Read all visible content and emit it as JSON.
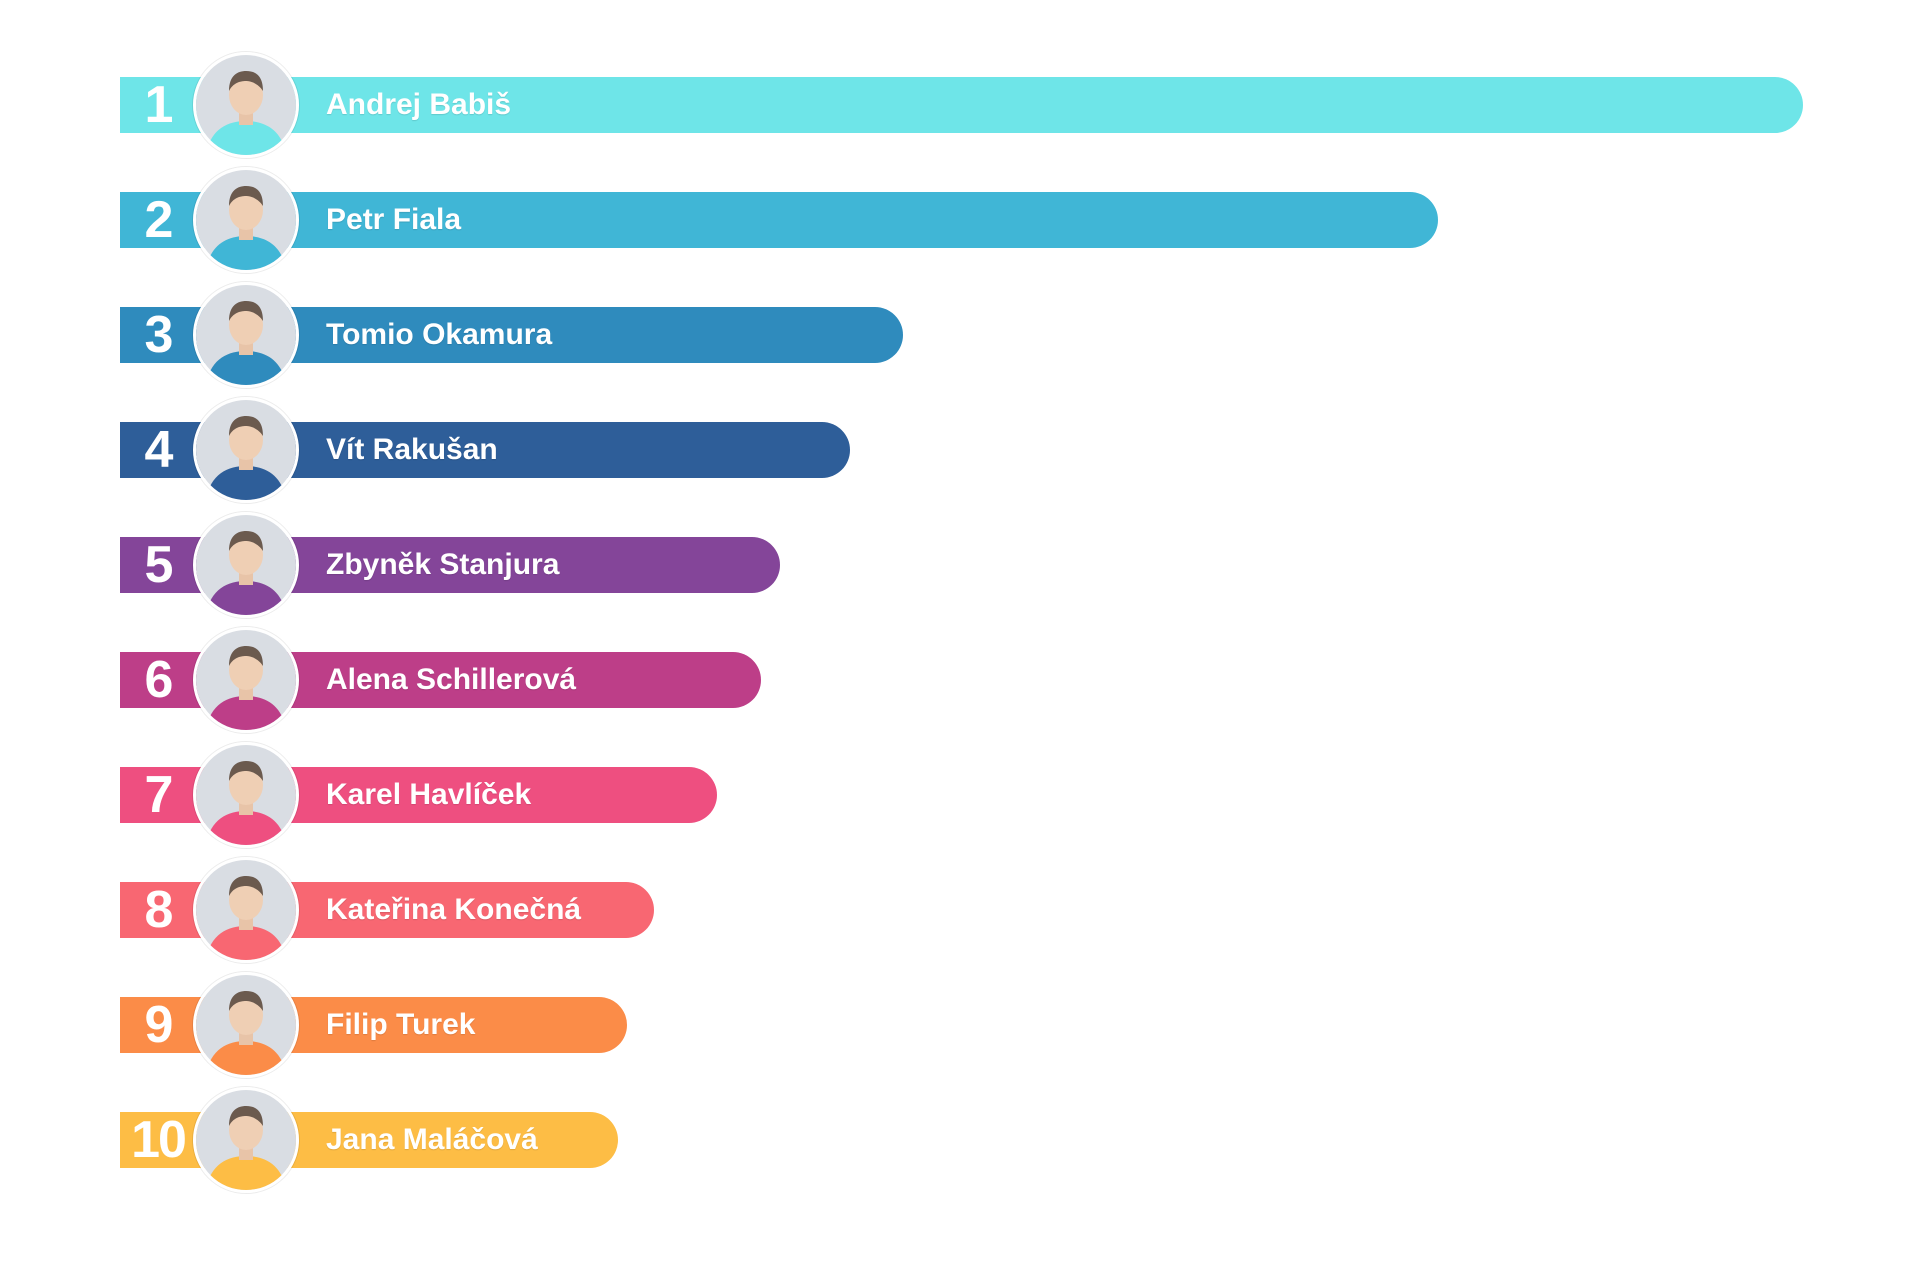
{
  "chart_data": {
    "type": "bar",
    "orientation": "horizontal",
    "categories": [
      "Andrej Babiš",
      "Petr Fiala",
      "Tomio Okamura",
      "Vít Rakušan",
      "Zbyněk Stanjura",
      "Alena Schillerová",
      "Karel Havlíček",
      "Kateřina Konečná",
      "Filip Turek",
      "Jana Maláčová"
    ],
    "ranks": [
      "1",
      "2",
      "3",
      "4",
      "5",
      "6",
      "7",
      "8",
      "9",
      "10"
    ],
    "values": [
      100,
      78.3,
      46.5,
      43.4,
      39.2,
      38.1,
      35.5,
      31.7,
      30.1,
      29.6
    ],
    "xlim": [
      0,
      100
    ],
    "colors": [
      "#6ee5e8",
      "#40b6d6",
      "#2f8bbd",
      "#2e5e99",
      "#844599",
      "#bd3e88",
      "#ee4f80",
      "#f86772",
      "#fb8c48",
      "#fdbd45"
    ],
    "avatar_icons": [
      "person-photo-icon",
      "person-photo-icon",
      "person-photo-icon",
      "person-photo-icon",
      "person-photo-icon",
      "person-photo-icon",
      "person-photo-icon",
      "person-photo-icon",
      "person-photo-icon",
      "person-photo-icon"
    ],
    "grid": false,
    "title": "",
    "xlabel": "",
    "ylabel": ""
  }
}
